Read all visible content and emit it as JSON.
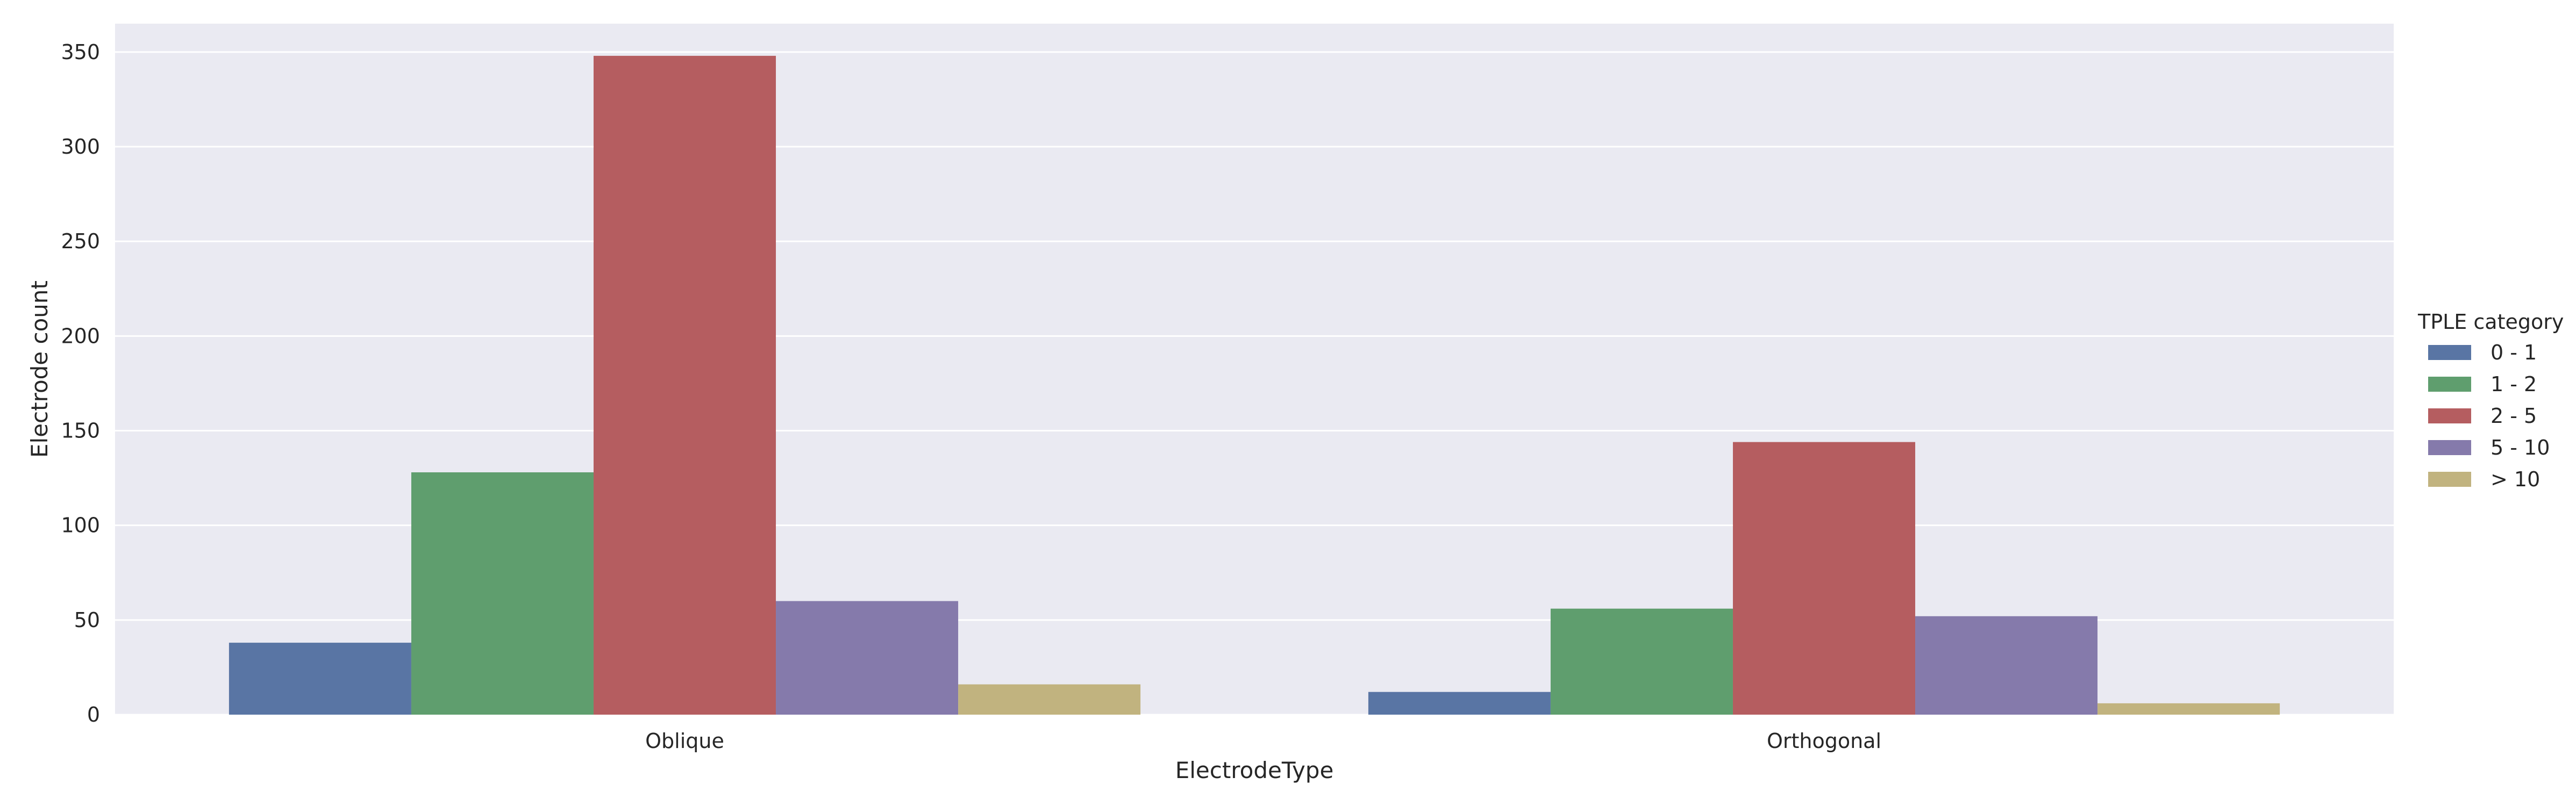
{
  "chart_data": {
    "type": "bar",
    "xlabel": "ElectrodeType",
    "ylabel": "Electrode count",
    "categories": [
      "Oblique",
      "Orthogonal"
    ],
    "ylim": [
      0,
      365
    ],
    "yticks": [
      0,
      50,
      100,
      150,
      200,
      250,
      300,
      350
    ],
    "grid": true,
    "legend": {
      "title": "TPLE category",
      "placement": "right"
    },
    "series": [
      {
        "name": "0 - 1",
        "color": "#5975a4",
        "values": [
          38,
          12
        ]
      },
      {
        "name": "1 - 2",
        "color": "#5f9e6e",
        "values": [
          128,
          56
        ]
      },
      {
        "name": "2 - 5",
        "color": "#b55d60",
        "values": [
          348,
          144
        ]
      },
      {
        "name": "5 - 10",
        "color": "#857aab",
        "values": [
          60,
          52
        ]
      },
      {
        "name": "> 10",
        "color": "#c1b37f",
        "values": [
          16,
          6
        ]
      }
    ],
    "background_color": "#eaeaf2",
    "grid_color": "#ffffff"
  }
}
